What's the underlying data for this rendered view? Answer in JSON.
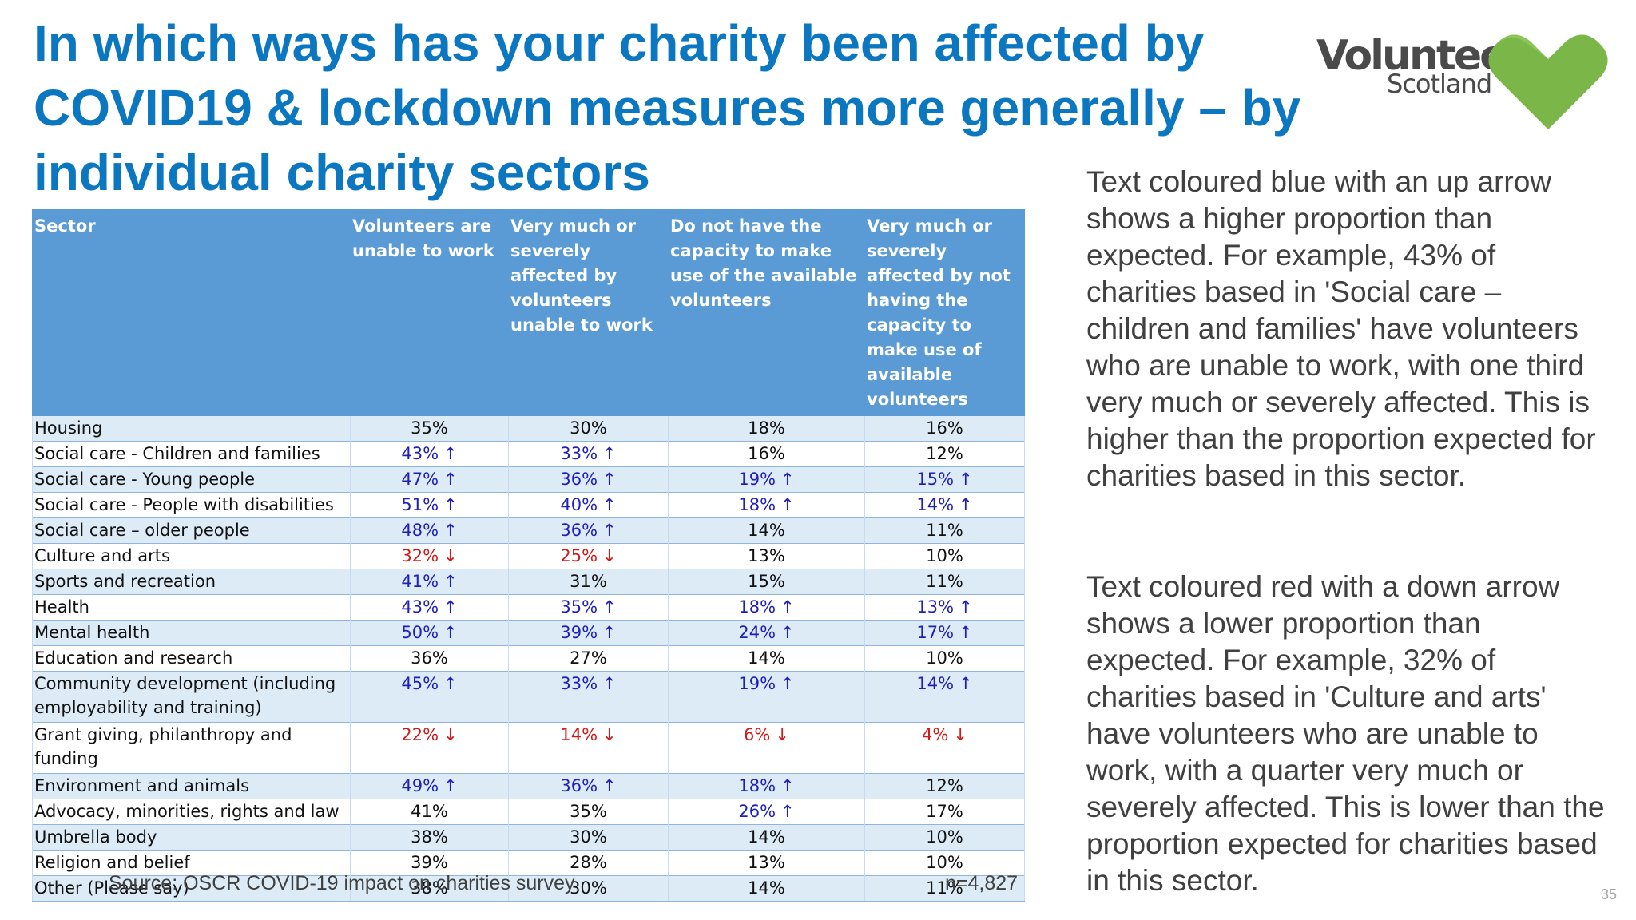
{
  "title": "In which ways has your charity been affected by COVID19 & lockdown measures more generally – by individual charity sectors",
  "logo": {
    "word": "Volunteer",
    "sub": "Scotland",
    "heart_color": "#7ab648"
  },
  "colors": {
    "title": "#0b77c1",
    "header_bg": "#5b9bd5",
    "band": "#ddebf7",
    "higher": "#1f1fb8",
    "lower": "#d11b1b"
  },
  "table": {
    "headers": [
      "Sector",
      "Volunteers are unable to work",
      "Very much or severely affected by volunteers unable to work",
      "Do not have the capacity to make use of the available volunteers",
      "Very much or severely affected by not having the capacity to make use of available volunteers"
    ],
    "rows": [
      {
        "sector": "Housing",
        "cells": [
          {
            "v": "35%",
            "t": ""
          },
          {
            "v": "30%",
            "t": ""
          },
          {
            "v": "18%",
            "t": ""
          },
          {
            "v": "16%",
            "t": ""
          }
        ]
      },
      {
        "sector": "Social care - Children and families",
        "cells": [
          {
            "v": "43%",
            "t": "up"
          },
          {
            "v": "33%",
            "t": "up"
          },
          {
            "v": "16%",
            "t": ""
          },
          {
            "v": "12%",
            "t": ""
          }
        ]
      },
      {
        "sector": "Social care - Young people",
        "cells": [
          {
            "v": "47%",
            "t": "up"
          },
          {
            "v": "36%",
            "t": "up"
          },
          {
            "v": "19%",
            "t": "up"
          },
          {
            "v": "15%",
            "t": "up"
          }
        ]
      },
      {
        "sector": "Social care - People with disabilities",
        "cells": [
          {
            "v": "51%",
            "t": "up"
          },
          {
            "v": "40%",
            "t": "up"
          },
          {
            "v": "18%",
            "t": "up"
          },
          {
            "v": "14%",
            "t": "up"
          }
        ]
      },
      {
        "sector": "Social care – older people",
        "cells": [
          {
            "v": "48%",
            "t": "up"
          },
          {
            "v": "36%",
            "t": "up"
          },
          {
            "v": "14%",
            "t": ""
          },
          {
            "v": "11%",
            "t": ""
          }
        ]
      },
      {
        "sector": "Culture and arts",
        "cells": [
          {
            "v": "32%",
            "t": "down"
          },
          {
            "v": "25%",
            "t": "down"
          },
          {
            "v": "13%",
            "t": ""
          },
          {
            "v": "10%",
            "t": ""
          }
        ]
      },
      {
        "sector": "Sports and recreation",
        "cells": [
          {
            "v": "41%",
            "t": "up"
          },
          {
            "v": "31%",
            "t": ""
          },
          {
            "v": "15%",
            "t": ""
          },
          {
            "v": "11%",
            "t": ""
          }
        ]
      },
      {
        "sector": "Health",
        "cells": [
          {
            "v": "43%",
            "t": "up"
          },
          {
            "v": "35%",
            "t": "up"
          },
          {
            "v": "18%",
            "t": "up"
          },
          {
            "v": "13%",
            "t": "up"
          }
        ]
      },
      {
        "sector": "Mental health",
        "cells": [
          {
            "v": "50%",
            "t": "up"
          },
          {
            "v": "39%",
            "t": "up"
          },
          {
            "v": "24%",
            "t": "up"
          },
          {
            "v": "17%",
            "t": "up"
          }
        ]
      },
      {
        "sector": "Education and research",
        "cells": [
          {
            "v": "36%",
            "t": ""
          },
          {
            "v": "27%",
            "t": ""
          },
          {
            "v": "14%",
            "t": ""
          },
          {
            "v": "10%",
            "t": ""
          }
        ]
      },
      {
        "sector": "Community development (including employability and training)",
        "cells": [
          {
            "v": "45%",
            "t": "up"
          },
          {
            "v": "33%",
            "t": "up"
          },
          {
            "v": "19%",
            "t": "up"
          },
          {
            "v": "14%",
            "t": "up"
          }
        ]
      },
      {
        "sector": "Grant giving, philanthropy and funding",
        "cells": [
          {
            "v": "22%",
            "t": "down"
          },
          {
            "v": "14%",
            "t": "down"
          },
          {
            "v": "6%",
            "t": "down"
          },
          {
            "v": "4%",
            "t": "down"
          }
        ]
      },
      {
        "sector": "Environment and animals",
        "cells": [
          {
            "v": "49%",
            "t": "up"
          },
          {
            "v": "36%",
            "t": "up"
          },
          {
            "v": "18%",
            "t": "up"
          },
          {
            "v": "12%",
            "t": ""
          }
        ]
      },
      {
        "sector": "Advocacy, minorities, rights and law",
        "cells": [
          {
            "v": "41%",
            "t": ""
          },
          {
            "v": "35%",
            "t": ""
          },
          {
            "v": "26%",
            "t": "up"
          },
          {
            "v": "17%",
            "t": ""
          }
        ]
      },
      {
        "sector": "Umbrella body",
        "cells": [
          {
            "v": "38%",
            "t": ""
          },
          {
            "v": "30%",
            "t": ""
          },
          {
            "v": "14%",
            "t": ""
          },
          {
            "v": "10%",
            "t": ""
          }
        ]
      },
      {
        "sector": "Religion and belief",
        "cells": [
          {
            "v": "39%",
            "t": ""
          },
          {
            "v": "28%",
            "t": ""
          },
          {
            "v": "13%",
            "t": ""
          },
          {
            "v": "10%",
            "t": ""
          }
        ]
      },
      {
        "sector": "Other (Please say)",
        "cells": [
          {
            "v": "38%",
            "t": ""
          },
          {
            "v": "30%",
            "t": ""
          },
          {
            "v": "14%",
            "t": ""
          },
          {
            "v": "11%",
            "t": ""
          }
        ]
      }
    ]
  },
  "source": "Source: OSCR COVID-19 impact on charities survey",
  "n": "n=4,827",
  "notes": [
    "Text coloured blue with an up arrow shows a higher proportion than expected. For example, 43% of charities based in 'Social care – children and families' have volunteers who are unable to work, with one third very much or severely affected. This is higher than the proportion expected for charities based in this sector.",
    "Text coloured red with a down arrow shows a lower proportion than expected. For example, 32% of charities based in 'Culture and arts' have volunteers who are unable to work, with a quarter very much or severely affected. This is lower than the proportion expected for charities based in this sector."
  ],
  "page_number": "35"
}
